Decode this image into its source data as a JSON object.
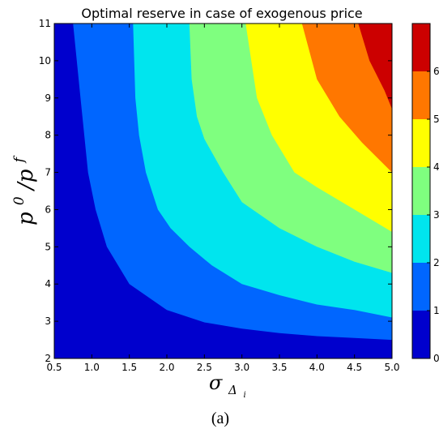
{
  "chart_data": {
    "type": "contourf",
    "title": "Optimal reserve in case of exogenous price",
    "x_axis": {
      "label_main": "σ",
      "label_sub": "Δ",
      "label_subsub": "i",
      "range": [
        0.5,
        5.0
      ],
      "ticks": [
        "0.5",
        "1.0",
        "1.5",
        "2.0",
        "2.5",
        "3.0",
        "3.5",
        "4.0",
        "4.5",
        "5.0"
      ]
    },
    "y_axis": {
      "label_text": "p",
      "label_sup0": "0",
      "label_slash": " /p",
      "label_supf": "f",
      "range": [
        2,
        11
      ],
      "ticks": [
        "2",
        "3",
        "4",
        "5",
        "6",
        "7",
        "8",
        "9",
        "10",
        "11"
      ]
    },
    "colorbar": {
      "range": [
        0,
        7
      ],
      "ticks": [
        "0",
        "1",
        "2",
        "3",
        "4",
        "5",
        "6"
      ]
    },
    "levels": [
      {
        "range": [
          0,
          1
        ],
        "color": "#0000cd"
      },
      {
        "range": [
          1,
          2
        ],
        "color": "#0066ff"
      },
      {
        "range": [
          2,
          3
        ],
        "color": "#00e5ee"
      },
      {
        "range": [
          3,
          4
        ],
        "color": "#7fff7f"
      },
      {
        "range": [
          4,
          5
        ],
        "color": "#ffff00"
      },
      {
        "range": [
          5,
          6
        ],
        "color": "#ff7700"
      },
      {
        "range": [
          6,
          7
        ],
        "color": "#cc0000"
      }
    ],
    "boundaries": [
      {
        "level": 1,
        "points": [
          [
            0.75,
            11
          ],
          [
            0.85,
            9.0
          ],
          [
            0.95,
            7.0
          ],
          [
            1.05,
            6.0
          ],
          [
            1.2,
            5.0
          ],
          [
            1.5,
            4.0
          ],
          [
            2.0,
            3.3
          ],
          [
            2.5,
            2.97
          ],
          [
            3.0,
            2.8
          ],
          [
            3.5,
            2.68
          ],
          [
            4.0,
            2.6
          ],
          [
            4.5,
            2.55
          ],
          [
            5.0,
            2.5
          ]
        ]
      },
      {
        "level": 2,
        "points": [
          [
            1.55,
            11
          ],
          [
            1.58,
            9.0
          ],
          [
            1.63,
            8.0
          ],
          [
            1.72,
            7.0
          ],
          [
            1.88,
            6.0
          ],
          [
            2.05,
            5.5
          ],
          [
            2.3,
            5.0
          ],
          [
            2.6,
            4.5
          ],
          [
            3.0,
            4.0
          ],
          [
            3.5,
            3.7
          ],
          [
            4.0,
            3.45
          ],
          [
            4.5,
            3.3
          ],
          [
            5.0,
            3.1
          ]
        ]
      },
      {
        "level": 3,
        "points": [
          [
            2.3,
            11
          ],
          [
            2.33,
            9.5
          ],
          [
            2.4,
            8.5
          ],
          [
            2.5,
            7.9
          ],
          [
            2.75,
            7.0
          ],
          [
            3.0,
            6.2
          ],
          [
            3.5,
            5.5
          ],
          [
            4.0,
            5.0
          ],
          [
            4.5,
            4.6
          ],
          [
            5.0,
            4.3
          ]
        ]
      },
      {
        "level": 4,
        "points": [
          [
            3.05,
            11
          ],
          [
            3.2,
            9.0
          ],
          [
            3.4,
            8.0
          ],
          [
            3.7,
            7.0
          ],
          [
            4.0,
            6.6
          ],
          [
            4.5,
            6.0
          ],
          [
            5.0,
            5.4
          ]
        ]
      },
      {
        "level": 5,
        "points": [
          [
            3.8,
            11
          ],
          [
            4.0,
            9.5
          ],
          [
            4.3,
            8.5
          ],
          [
            4.6,
            7.8
          ],
          [
            5.0,
            7.0
          ]
        ]
      },
      {
        "level": 6,
        "points": [
          [
            4.55,
            11
          ],
          [
            4.7,
            10.0
          ],
          [
            4.9,
            9.2
          ],
          [
            5.0,
            8.7
          ]
        ]
      }
    ]
  },
  "caption": "(a)"
}
